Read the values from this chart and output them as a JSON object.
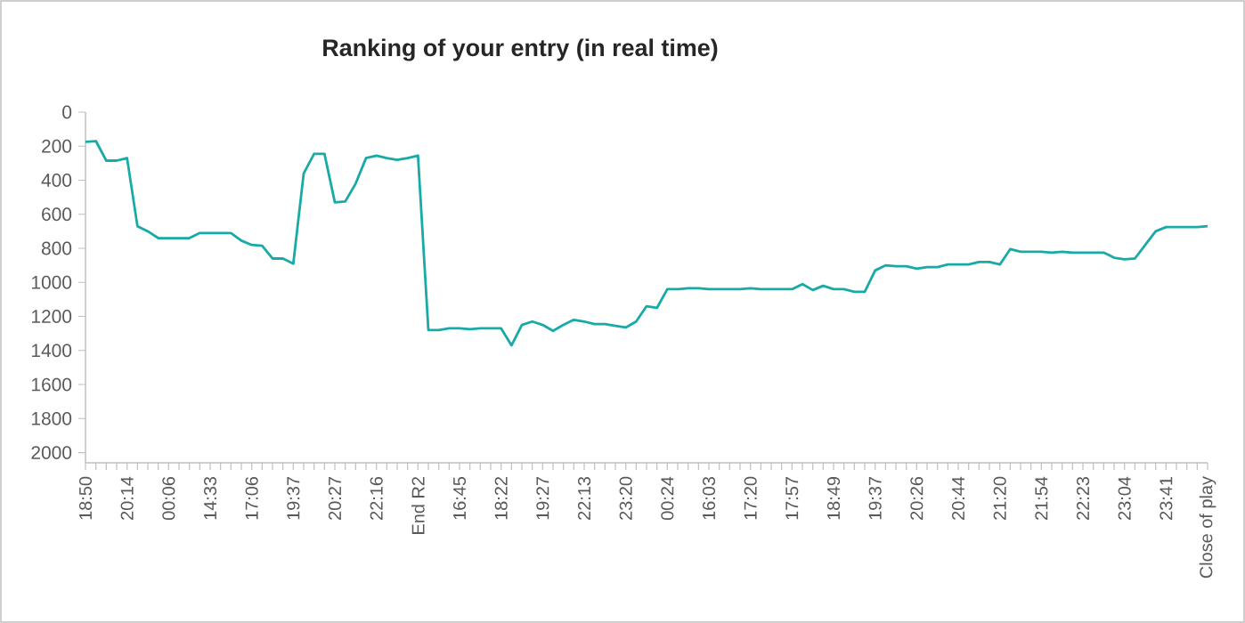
{
  "chart_data": {
    "type": "line",
    "title": "Ranking of your entry (in real time)",
    "categories": [
      "18:50",
      null,
      null,
      null,
      "20:14",
      null,
      null,
      null,
      "00:06",
      null,
      null,
      null,
      "14:33",
      null,
      null,
      null,
      "17:06",
      null,
      null,
      null,
      "19:37",
      null,
      null,
      null,
      "20:27",
      null,
      null,
      null,
      "22:16",
      null,
      null,
      null,
      "End R2",
      null,
      null,
      null,
      "16:45",
      null,
      null,
      null,
      "18:22",
      null,
      null,
      null,
      "19:27",
      null,
      null,
      null,
      "22:13",
      null,
      null,
      null,
      "23:20",
      null,
      null,
      null,
      "00:24",
      null,
      null,
      null,
      "16:03",
      null,
      null,
      null,
      "17:20",
      null,
      null,
      null,
      "17:57",
      null,
      null,
      null,
      "18:49",
      null,
      null,
      null,
      "19:37",
      null,
      null,
      null,
      "20:26",
      null,
      null,
      null,
      "20:44",
      null,
      null,
      null,
      "21:20",
      null,
      null,
      null,
      "21:54",
      null,
      null,
      null,
      "22:23",
      null,
      null,
      null,
      "23:04",
      null,
      null,
      null,
      "23:41",
      null,
      null,
      null,
      "Close of play"
    ],
    "series": [
      {
        "color": "#17aaa6",
        "values": [
          175,
          170,
          285,
          285,
          270,
          670,
          700,
          740,
          740,
          740,
          740,
          710,
          710,
          710,
          710,
          755,
          780,
          785,
          860,
          860,
          890,
          360,
          245,
          245,
          530,
          525,
          420,
          270,
          255,
          270,
          280,
          270,
          255,
          1280,
          1280,
          1270,
          1270,
          1275,
          1270,
          1270,
          1270,
          1370,
          1250,
          1230,
          1250,
          1285,
          1250,
          1220,
          1230,
          1245,
          1245,
          1255,
          1265,
          1230,
          1140,
          1150,
          1040,
          1040,
          1035,
          1035,
          1040,
          1040,
          1040,
          1040,
          1035,
          1040,
          1040,
          1040,
          1040,
          1010,
          1045,
          1020,
          1040,
          1040,
          1055,
          1055,
          930,
          900,
          905,
          905,
          920,
          910,
          910,
          895,
          895,
          895,
          880,
          880,
          895,
          805,
          820,
          820,
          820,
          825,
          820,
          825,
          825,
          825,
          825,
          855,
          865,
          860,
          780,
          700,
          675,
          675,
          675,
          675,
          670
        ]
      }
    ],
    "ylim": [
      2060,
      0
    ],
    "yticks": [
      0,
      200,
      400,
      600,
      800,
      1000,
      1200,
      1400,
      1600,
      1800,
      2000
    ],
    "line_style": "solid",
    "marker": "none"
  }
}
